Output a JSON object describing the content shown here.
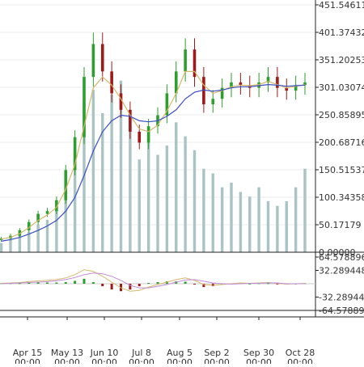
{
  "chart_data": [
    {
      "type": "candlestick",
      "panel": "price-volume",
      "y_tick_labels": [
        "451.54611",
        "401.37432",
        "351.20253",
        "301.03074",
        "250.85895",
        "200.68716",
        "150.51537",
        "100.34358",
        "50.17179",
        "0.00000"
      ],
      "ylim": [
        0,
        451.54611
      ],
      "overlays": [
        {
          "kind": "moving-average",
          "color": "#d4b86a"
        },
        {
          "kind": "moving-average",
          "color": "#3b4fc4"
        }
      ],
      "up_color": "#2e9e2e",
      "down_color": "#9e1a1a",
      "volume_color": "#a9c4c2",
      "x_tick_labels": [
        "Apr 15 00:00",
        "May 13 00:00",
        "Jun 10 00:00",
        "Jul 8 00:00",
        "Aug 5 00:00",
        "Sep 2 00:00",
        "Sep 30 00:00",
        "Oct 28 00:00"
      ],
      "x": [
        1,
        8,
        15,
        22,
        29,
        36,
        43,
        50,
        57,
        64,
        71,
        78,
        85,
        92,
        99,
        106,
        113,
        120,
        127,
        134,
        141,
        148,
        155,
        162,
        169,
        176,
        183,
        190,
        197,
        204,
        211,
        218,
        225,
        232
      ],
      "close": [
        25,
        30,
        40,
        55,
        70,
        75,
        95,
        150,
        210,
        320,
        380,
        330,
        290,
        260,
        220,
        200,
        230,
        250,
        290,
        330,
        370,
        320,
        270,
        280,
        300,
        310,
        305,
        300,
        310,
        320,
        300,
        295,
        305,
        310
      ],
      "ma_fast": [
        24,
        27,
        34,
        45,
        58,
        68,
        82,
        115,
        160,
        230,
        300,
        320,
        305,
        280,
        250,
        225,
        220,
        232,
        258,
        290,
        330,
        330,
        305,
        290,
        295,
        302,
        305,
        304,
        306,
        312,
        306,
        300,
        303,
        306
      ],
      "ma_slow": [
        20,
        23,
        27,
        33,
        40,
        48,
        58,
        75,
        100,
        140,
        185,
        220,
        240,
        250,
        248,
        240,
        238,
        240,
        248,
        260,
        280,
        292,
        296,
        294,
        296,
        300,
        302,
        302,
        304,
        306,
        305,
        303,
        304,
        305
      ],
      "volume": [
        10,
        14,
        18,
        22,
        30,
        35,
        45,
        70,
        110,
        160,
        175,
        150,
        170,
        185,
        130,
        100,
        120,
        105,
        115,
        140,
        125,
        110,
        90,
        85,
        70,
        75,
        65,
        60,
        70,
        55,
        50,
        55,
        70,
        90
      ]
    },
    {
      "type": "macd",
      "panel": "indicator",
      "y_tick_labels": [
        "64.578896",
        "32.289448",
        "-32.28944",
        "-64.57889"
      ],
      "ylim": [
        -64.578896,
        64.578896
      ],
      "macd_color": "#d4b86a",
      "signal_color": "#c08bd6",
      "hist_up_color": "#2e9e2e",
      "hist_down_color": "#9e1a1a",
      "macd": [
        1,
        2,
        3,
        5,
        7,
        8,
        10,
        14,
        22,
        34,
        30,
        18,
        4,
        -10,
        -18,
        -16,
        -8,
        -2,
        4,
        10,
        14,
        8,
        -2,
        -4,
        -2,
        0,
        2,
        1,
        2,
        3,
        1,
        -1,
        0,
        1
      ],
      "signal": [
        0,
        1,
        2,
        3,
        4,
        5,
        7,
        10,
        15,
        22,
        26,
        24,
        18,
        8,
        -4,
        -10,
        -10,
        -6,
        -2,
        4,
        9,
        10,
        6,
        2,
        0,
        -1,
        0,
        1,
        1,
        2,
        2,
        0,
        0,
        0
      ]
    }
  ]
}
